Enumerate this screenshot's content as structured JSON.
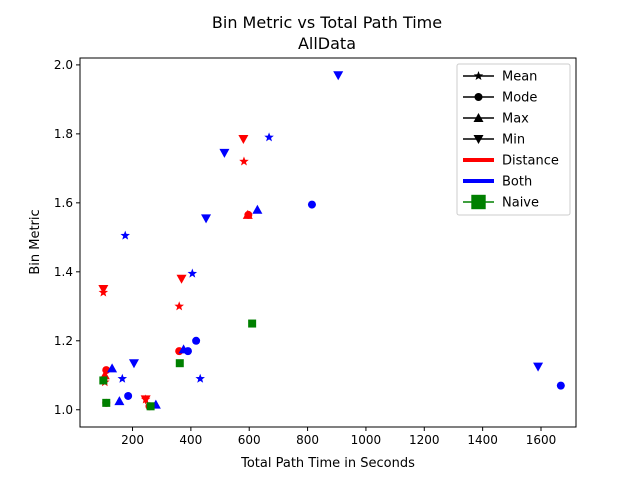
{
  "chart_data": {
    "type": "scatter",
    "title": "Bin Metric vs Total Path Time",
    "subtitle": "AllData",
    "xlabel": "Total Path Time in Seconds",
    "ylabel": "Bin Metric",
    "xlim": [
      20,
      1720
    ],
    "ylim": [
      0.95,
      2.02
    ],
    "xticks": [
      200,
      400,
      600,
      800,
      1000,
      1200,
      1400,
      1600
    ],
    "yticks": [
      1.0,
      1.2,
      1.4,
      1.6,
      1.8,
      2.0
    ],
    "xtick_labels": [
      "200",
      "400",
      "600",
      "800",
      "1000",
      "1200",
      "1400",
      "1600"
    ],
    "ytick_labels": [
      "1.0",
      "1.2",
      "1.4",
      "1.6",
      "1.8",
      "2.0"
    ],
    "grid": false,
    "legend_position": "top-right",
    "legend": [
      {
        "label": "Mean",
        "kind": "marker",
        "marker": "star",
        "color": "#000000"
      },
      {
        "label": "Mode",
        "kind": "marker",
        "marker": "circle",
        "color": "#000000"
      },
      {
        "label": "Max",
        "kind": "marker",
        "marker": "triangle-up",
        "color": "#000000"
      },
      {
        "label": "Min",
        "kind": "marker",
        "marker": "triangle-down",
        "color": "#000000"
      },
      {
        "label": "Distance",
        "kind": "line",
        "color": "#ff0000"
      },
      {
        "label": "Both",
        "kind": "line",
        "color": "#0000ff"
      },
      {
        "label": "Naive",
        "kind": "square",
        "color": "#008000"
      }
    ],
    "series": [
      {
        "group": "Distance",
        "marker": "star",
        "color": "#ff0000",
        "points": [
          [
            100,
            1.34
          ],
          [
            105,
            1.08
          ],
          [
            245,
            1.03
          ],
          [
            360,
            1.3
          ],
          [
            582,
            1.72
          ]
        ]
      },
      {
        "group": "Distance",
        "marker": "circle",
        "color": "#ff0000",
        "points": [
          [
            110,
            1.115
          ],
          [
            110,
            1.02
          ],
          [
            258,
            1.01
          ],
          [
            360,
            1.17
          ],
          [
            597,
            1.565
          ]
        ]
      },
      {
        "group": "Distance",
        "marker": "triangle-up",
        "color": "#ff0000",
        "points": [
          [
            105,
            1.1
          ],
          [
            595,
            1.565
          ]
        ]
      },
      {
        "group": "Distance",
        "marker": "triangle-down",
        "color": "#ff0000",
        "points": [
          [
            100,
            1.35
          ],
          [
            245,
            1.03
          ],
          [
            368,
            1.38
          ],
          [
            580,
            1.785
          ]
        ]
      },
      {
        "group": "Both",
        "marker": "star",
        "color": "#0000ff",
        "points": [
          [
            165,
            1.09
          ],
          [
            175,
            1.505
          ],
          [
            405,
            1.395
          ],
          [
            432,
            1.09
          ],
          [
            668,
            1.79
          ]
        ]
      },
      {
        "group": "Both",
        "marker": "circle",
        "color": "#0000ff",
        "points": [
          [
            185,
            1.04
          ],
          [
            390,
            1.17
          ],
          [
            418,
            1.2
          ],
          [
            815,
            1.595
          ],
          [
            1668,
            1.07
          ]
        ]
      },
      {
        "group": "Both",
        "marker": "triangle-up",
        "color": "#0000ff",
        "points": [
          [
            130,
            1.12
          ],
          [
            155,
            1.025
          ],
          [
            280,
            1.015
          ],
          [
            375,
            1.175
          ],
          [
            628,
            1.58
          ]
        ]
      },
      {
        "group": "Both",
        "marker": "triangle-down",
        "color": "#0000ff",
        "points": [
          [
            205,
            1.135
          ],
          [
            452,
            1.555
          ],
          [
            515,
            1.745
          ],
          [
            905,
            1.97
          ],
          [
            1590,
            1.125
          ]
        ]
      },
      {
        "group": "Naive",
        "marker": "square",
        "color": "#008000",
        "points": [
          [
            100,
            1.085
          ],
          [
            110,
            1.02
          ],
          [
            262,
            1.01
          ],
          [
            362,
            1.135
          ],
          [
            610,
            1.25
          ]
        ]
      }
    ]
  }
}
